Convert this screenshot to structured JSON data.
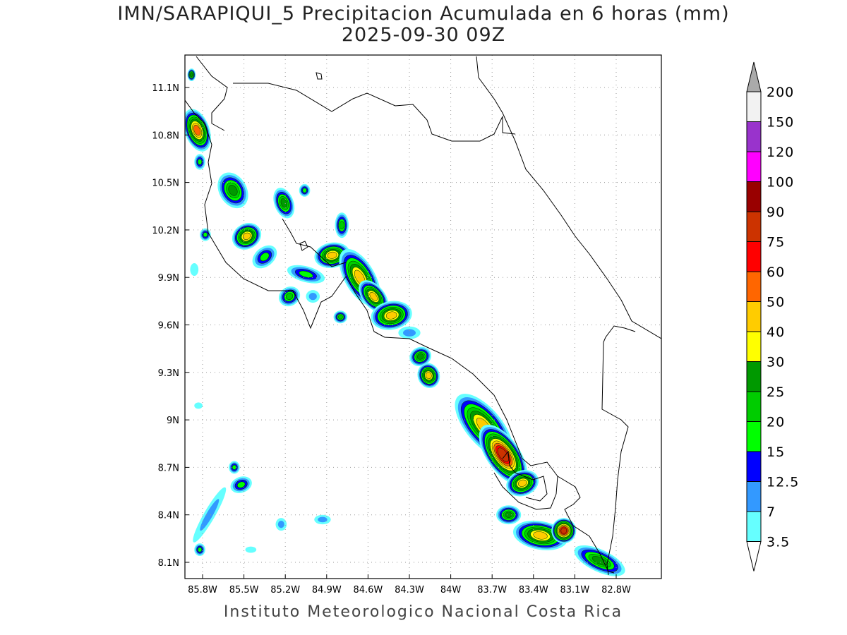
{
  "title": "IMN/SARAPIQUI_5 Precipitacion Acumulada en 6 horas (mm)",
  "subtitle": "2025-09-30 09Z",
  "credit": "Instituto Meteorologico Nacional Costa Rica",
  "map": {
    "lon_range": [
      -85.93,
      -82.6
    ],
    "lat_range": [
      8.0,
      11.3
    ],
    "lon_ticks": [
      {
        "v": -85.8,
        "label": "85.8W"
      },
      {
        "v": -85.5,
        "label": "85.5W"
      },
      {
        "v": -85.2,
        "label": "85.2W"
      },
      {
        "v": -84.9,
        "label": "84.9W"
      },
      {
        "v": -84.6,
        "label": "84.6W"
      },
      {
        "v": -84.3,
        "label": "84.3W"
      },
      {
        "v": -84.0,
        "label": "84W"
      },
      {
        "v": -83.7,
        "label": "83.7W"
      },
      {
        "v": -83.4,
        "label": "83.4W"
      },
      {
        "v": -83.1,
        "label": "83.1W"
      },
      {
        "v": -82.8,
        "label": "82.8W"
      }
    ],
    "lat_ticks": [
      {
        "v": 11.1,
        "label": "11.1N"
      },
      {
        "v": 10.8,
        "label": "10.8N"
      },
      {
        "v": 10.5,
        "label": "10.5N"
      },
      {
        "v": 10.2,
        "label": "10.2N"
      },
      {
        "v": 9.9,
        "label": "9.9N"
      },
      {
        "v": 9.6,
        "label": "9.6N"
      },
      {
        "v": 9.3,
        "label": "9.3N"
      },
      {
        "v": 9.0,
        "label": "9N"
      },
      {
        "v": 8.7,
        "label": "8.7N"
      },
      {
        "v": 8.4,
        "label": "8.4N"
      },
      {
        "v": 8.1,
        "label": "8.1N"
      }
    ]
  },
  "colorbar": {
    "labels": [
      "3.5",
      "7",
      "12.5",
      "15",
      "20",
      "25",
      "30",
      "40",
      "50",
      "60",
      "75",
      "90",
      "100",
      "120",
      "150",
      "200"
    ],
    "thresholds": [
      3.5,
      7,
      12.5,
      15,
      20,
      25,
      30,
      40,
      50,
      60,
      75,
      90,
      100,
      120,
      150,
      200
    ],
    "below_color": "#ffffff",
    "colors": [
      "#66ffff",
      "#3399ff",
      "#0000ff",
      "#00ff00",
      "#00cc00",
      "#009900",
      "#ffff00",
      "#ffcc00",
      "#ff6600",
      "#ff0000",
      "#cc3300",
      "#990000",
      "#ff00ff",
      "#9933cc",
      "#f2f2f2"
    ],
    "above_color": "#aaaaaa"
  },
  "precip_cells": [
    {
      "lon": -85.84,
      "lat": 10.83,
      "peak": 50,
      "rx": 0.09,
      "ry": 0.14,
      "rot": -20
    },
    {
      "lon": -85.88,
      "lat": 11.18,
      "peak": 25,
      "rx": 0.03,
      "ry": 0.04,
      "rot": 0
    },
    {
      "lon": -85.58,
      "lat": 10.45,
      "peak": 25,
      "rx": 0.1,
      "ry": 0.12,
      "rot": -30
    },
    {
      "lon": -85.48,
      "lat": 10.16,
      "peak": 40,
      "rx": 0.11,
      "ry": 0.08,
      "rot": -30
    },
    {
      "lon": -85.21,
      "lat": 10.37,
      "peak": 25,
      "rx": 0.07,
      "ry": 0.1,
      "rot": -20
    },
    {
      "lon": -85.35,
      "lat": 10.03,
      "peak": 15,
      "rx": 0.1,
      "ry": 0.06,
      "rot": -40
    },
    {
      "lon": -85.17,
      "lat": 9.78,
      "peak": 20,
      "rx": 0.08,
      "ry": 0.06,
      "rot": -30
    },
    {
      "lon": -85.05,
      "lat": 9.92,
      "peak": 15,
      "rx": 0.14,
      "ry": 0.05,
      "rot": 15
    },
    {
      "lon": -84.86,
      "lat": 10.04,
      "peak": 40,
      "rx": 0.13,
      "ry": 0.08,
      "rot": -10
    },
    {
      "lon": -84.79,
      "lat": 10.23,
      "peak": 20,
      "rx": 0.05,
      "ry": 0.08,
      "rot": 0
    },
    {
      "lon": -84.66,
      "lat": 9.9,
      "peak": 40,
      "rx": 0.11,
      "ry": 0.2,
      "rot": -30
    },
    {
      "lon": -84.56,
      "lat": 9.78,
      "peak": 40,
      "rx": 0.08,
      "ry": 0.12,
      "rot": -40
    },
    {
      "lon": -84.43,
      "lat": 9.66,
      "peak": 40,
      "rx": 0.15,
      "ry": 0.09,
      "rot": -10
    },
    {
      "lon": -84.8,
      "lat": 9.65,
      "peak": 20,
      "rx": 0.05,
      "ry": 0.04,
      "rot": 0
    },
    {
      "lon": -84.22,
      "lat": 9.4,
      "peak": 25,
      "rx": 0.08,
      "ry": 0.06,
      "rot": -20
    },
    {
      "lon": -84.16,
      "lat": 9.28,
      "peak": 40,
      "rx": 0.08,
      "ry": 0.08,
      "rot": -20
    },
    {
      "lon": -83.76,
      "lat": 8.96,
      "peak": 40,
      "rx": 0.13,
      "ry": 0.25,
      "rot": -40
    },
    {
      "lon": -83.62,
      "lat": 8.78,
      "peak": 75,
      "rx": 0.12,
      "ry": 0.22,
      "rot": -35
    },
    {
      "lon": -83.48,
      "lat": 8.6,
      "peak": 40,
      "rx": 0.12,
      "ry": 0.08,
      "rot": -20
    },
    {
      "lon": -83.58,
      "lat": 8.4,
      "peak": 25,
      "rx": 0.09,
      "ry": 0.06,
      "rot": 0
    },
    {
      "lon": -83.35,
      "lat": 8.27,
      "peak": 40,
      "rx": 0.2,
      "ry": 0.09,
      "rot": 10
    },
    {
      "lon": -83.18,
      "lat": 8.3,
      "peak": 75,
      "rx": 0.09,
      "ry": 0.08,
      "rot": 0
    },
    {
      "lon": -82.92,
      "lat": 8.11,
      "peak": 25,
      "rx": 0.2,
      "ry": 0.07,
      "rot": 25
    },
    {
      "lon": -85.52,
      "lat": 8.59,
      "peak": 15,
      "rx": 0.08,
      "ry": 0.05,
      "rot": -20
    },
    {
      "lon": -85.57,
      "lat": 8.7,
      "peak": 15,
      "rx": 0.04,
      "ry": 0.04,
      "rot": 0
    },
    {
      "lon": -85.82,
      "lat": 8.18,
      "peak": 15,
      "rx": 0.04,
      "ry": 0.04,
      "rot": 0
    },
    {
      "lon": -85.75,
      "lat": 8.4,
      "peak": 7,
      "rx": 0.04,
      "ry": 0.2,
      "rot": 30
    },
    {
      "lon": -85.23,
      "lat": 8.34,
      "peak": 7,
      "rx": 0.04,
      "ry": 0.04,
      "rot": 0
    },
    {
      "lon": -84.93,
      "lat": 8.37,
      "peak": 7,
      "rx": 0.06,
      "ry": 0.03,
      "rot": 0
    },
    {
      "lon": -85.06,
      "lat": 10.45,
      "peak": 15,
      "rx": 0.04,
      "ry": 0.04,
      "rot": 0
    },
    {
      "lon": -85.82,
      "lat": 10.63,
      "peak": 15,
      "rx": 0.04,
      "ry": 0.05,
      "rot": 0
    },
    {
      "lon": -85.78,
      "lat": 10.17,
      "peak": 15,
      "rx": 0.04,
      "ry": 0.04,
      "rot": 0
    },
    {
      "lon": -85.86,
      "lat": 9.95,
      "peak": 3.5,
      "rx": 0.03,
      "ry": 0.04,
      "rot": 0
    },
    {
      "lon": -85.0,
      "lat": 9.78,
      "peak": 7,
      "rx": 0.05,
      "ry": 0.04,
      "rot": 0
    },
    {
      "lon": -84.3,
      "lat": 9.55,
      "peak": 7,
      "rx": 0.08,
      "ry": 0.04,
      "rot": 0
    },
    {
      "lon": -85.83,
      "lat": 9.09,
      "peak": 3.5,
      "rx": 0.03,
      "ry": 0.02,
      "rot": 0
    },
    {
      "lon": -85.45,
      "lat": 8.18,
      "peak": 3.5,
      "rx": 0.04,
      "ry": 0.02,
      "rot": 0
    }
  ]
}
